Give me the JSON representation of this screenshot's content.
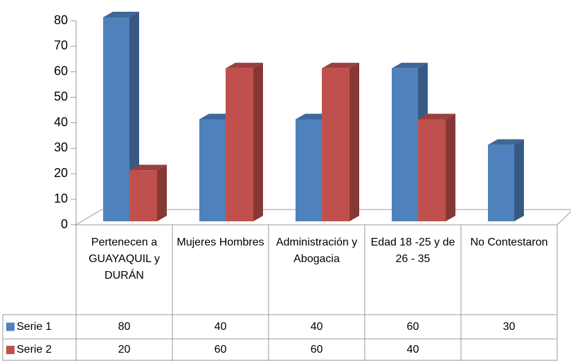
{
  "chart_data": {
    "type": "bar3d",
    "categories": [
      "Pertenecen a GUAYAQUIL y DURÁN",
      "Mujeres Hombres",
      "Administración y Abogacia",
      "Edad 18 -25 y de 26 - 35",
      "No Contestaron"
    ],
    "series": [
      {
        "name": "Serie 1",
        "color": "#4f81bd",
        "values": [
          80,
          40,
          40,
          60,
          30
        ]
      },
      {
        "name": "Serie 2",
        "color": "#c0504d",
        "values": [
          20,
          60,
          60,
          40,
          null
        ]
      }
    ],
    "ylim": [
      0,
      80
    ],
    "yticks": [
      0,
      10,
      20,
      30,
      40,
      50,
      60,
      70,
      80
    ],
    "grid": false,
    "data_table": true
  }
}
